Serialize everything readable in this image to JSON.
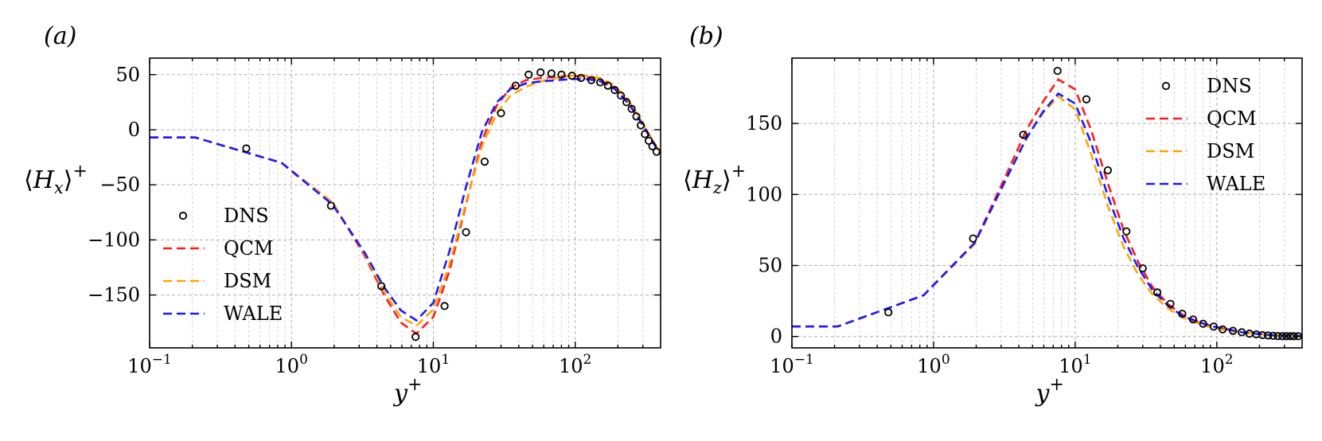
{
  "figure": {
    "colors": {
      "DNS": "#000000",
      "QCM": "#ff1a1a",
      "DSM": "#ffa500",
      "WALE": "#1a1aff"
    }
  },
  "chart_data": [
    {
      "panel_label": "(a)",
      "type": "line",
      "xscale": "log",
      "xlim": [
        0.1,
        400
      ],
      "ylim": [
        -198,
        65
      ],
      "xlabel_base": "y",
      "xlabel_sup": "+",
      "ylabel_main": "⟨H",
      "ylabel_sub": "x",
      "ylabel_close": "⟩",
      "ylabel_sup": "+",
      "x_ticks": [
        {
          "v": 0.1,
          "base": "10",
          "exp": "−1"
        },
        {
          "v": 1,
          "base": "10",
          "exp": "0"
        },
        {
          "v": 10,
          "base": "10",
          "exp": "1"
        },
        {
          "v": 100,
          "base": "10",
          "exp": "2"
        }
      ],
      "y_ticks": [
        {
          "v": 50,
          "label": "50"
        },
        {
          "v": 0,
          "label": "0"
        },
        {
          "v": -50,
          "label": "−50"
        },
        {
          "v": -100,
          "label": "−100"
        },
        {
          "v": -150,
          "label": "−150"
        }
      ],
      "legend": {
        "position": "lower-left",
        "entries": [
          "DNS",
          "QCM",
          "DSM",
          "WALE"
        ]
      },
      "grid": true,
      "series": [
        {
          "name": "DNS",
          "style": "markers",
          "color": "#000000",
          "x": [
            0.48,
            1.9,
            4.3,
            7.5,
            12,
            17,
            23,
            30,
            38,
            47,
            57,
            68,
            80,
            95,
            110,
            130,
            150,
            170,
            190,
            210,
            230,
            250,
            270,
            290,
            310,
            330,
            350,
            375
          ],
          "y": [
            -17,
            -69,
            -142,
            -188,
            -160,
            -93,
            -29,
            15,
            40,
            50,
            52,
            51,
            50,
            49,
            47,
            45,
            43,
            40,
            36,
            31,
            25,
            19,
            12,
            4,
            -4,
            -10,
            -15,
            -20
          ]
        },
        {
          "name": "QCM",
          "style": "dashed",
          "color": "#ff1a1a",
          "x": [
            0.1,
            0.21,
            0.85,
            1.95,
            3.3,
            4.5,
            5.9,
            7.6,
            10,
            13,
            17,
            22,
            28,
            35,
            45,
            58,
            75,
            95,
            120,
            150,
            190,
            240,
            300,
            360,
            400
          ],
          "y": [
            -7,
            -7,
            -30,
            -66,
            -115,
            -150,
            -175,
            -185,
            -170,
            -128,
            -68,
            -10,
            22,
            38,
            45,
            47,
            48,
            49,
            48,
            45,
            38,
            24,
            5,
            -12,
            -22
          ]
        },
        {
          "name": "DSM",
          "style": "dashed",
          "color": "#ffa500",
          "x": [
            0.1,
            0.21,
            0.85,
            1.95,
            3.3,
            4.5,
            5.9,
            7.6,
            10,
            13,
            17,
            22,
            28,
            35,
            45,
            58,
            75,
            95,
            120,
            150,
            190,
            240,
            300,
            360,
            400
          ],
          "y": [
            -7,
            -7,
            -30,
            -66,
            -113,
            -147,
            -170,
            -178,
            -163,
            -122,
            -66,
            -15,
            15,
            31,
            39,
            44,
            47,
            49,
            49,
            47,
            40,
            26,
            6,
            -12,
            -22
          ]
        },
        {
          "name": "WALE",
          "style": "dashed",
          "color": "#1a1aff",
          "x": [
            0.1,
            0.21,
            0.85,
            1.95,
            3.3,
            4.5,
            5.9,
            7.6,
            10,
            13,
            17,
            22,
            28,
            35,
            45,
            58,
            75,
            95,
            120,
            150,
            190,
            240,
            300,
            360,
            400
          ],
          "y": [
            -7,
            -7,
            -30,
            -68,
            -112,
            -143,
            -164,
            -173,
            -157,
            -110,
            -52,
            -2,
            25,
            37,
            42,
            44,
            45,
            46,
            46,
            44,
            37,
            23,
            4,
            -13,
            -22
          ]
        }
      ]
    },
    {
      "panel_label": "(b)",
      "type": "line",
      "xscale": "log",
      "xlim": [
        0.1,
        400
      ],
      "ylim": [
        -8,
        196
      ],
      "xlabel_base": "y",
      "xlabel_sup": "+",
      "ylabel_main": "⟨H",
      "ylabel_sub": "z",
      "ylabel_close": "⟩",
      "ylabel_sup": "+",
      "x_ticks": [
        {
          "v": 0.1,
          "base": "10",
          "exp": "−1"
        },
        {
          "v": 1,
          "base": "10",
          "exp": "0"
        },
        {
          "v": 10,
          "base": "10",
          "exp": "1"
        },
        {
          "v": 100,
          "base": "10",
          "exp": "2"
        }
      ],
      "y_ticks": [
        {
          "v": 150,
          "label": "150"
        },
        {
          "v": 100,
          "label": "100"
        },
        {
          "v": 50,
          "label": "50"
        },
        {
          "v": 0,
          "label": "0"
        }
      ],
      "legend": {
        "position": "upper-right",
        "entries": [
          "DNS",
          "QCM",
          "DSM",
          "WALE"
        ]
      },
      "grid": true,
      "series": [
        {
          "name": "DNS",
          "style": "markers",
          "color": "#000000",
          "x": [
            0.48,
            1.9,
            4.3,
            7.5,
            12,
            17,
            23,
            30,
            38,
            47,
            57,
            68,
            80,
            95,
            110,
            130,
            150,
            170,
            190,
            210,
            230,
            250,
            270,
            290,
            310,
            330,
            350,
            375
          ],
          "y": [
            17,
            69,
            142,
            187,
            167,
            117,
            74,
            48,
            31,
            23,
            16,
            12,
            9,
            7,
            5,
            4,
            3,
            2,
            1.5,
            1,
            0.7,
            0.5,
            0.3,
            0.2,
            0.2,
            0.2,
            0.2,
            0.2
          ]
        },
        {
          "name": "QCM",
          "style": "dashed",
          "color": "#ff1a1a",
          "x": [
            0.1,
            0.21,
            0.85,
            1.95,
            3.3,
            4.5,
            5.9,
            7.6,
            10,
            13,
            17,
            22,
            28,
            35,
            45,
            58,
            75,
            95,
            120,
            150,
            190,
            240,
            300,
            400
          ],
          "y": [
            7,
            7,
            29,
            66,
            115,
            145,
            165,
            181,
            174,
            145,
            108,
            75,
            52,
            35,
            23,
            15,
            10,
            7,
            5,
            3,
            2,
            1,
            0.5,
            0.3
          ]
        },
        {
          "name": "DSM",
          "style": "dashed",
          "color": "#ffa500",
          "x": [
            0.1,
            0.21,
            0.85,
            1.95,
            3.3,
            4.5,
            5.9,
            7.6,
            10,
            13,
            17,
            22,
            28,
            35,
            45,
            58,
            75,
            95,
            120,
            150,
            190,
            240,
            300,
            400
          ],
          "y": [
            7,
            7,
            29,
            65,
            112,
            140,
            157,
            169,
            160,
            128,
            92,
            63,
            43,
            30,
            20,
            13,
            9,
            6,
            4,
            3,
            2,
            1,
            0.5,
            0.3
          ]
        },
        {
          "name": "WALE",
          "style": "dashed",
          "color": "#1a1aff",
          "x": [
            0.1,
            0.21,
            0.85,
            1.95,
            3.3,
            4.5,
            5.9,
            7.6,
            10,
            13,
            17,
            22,
            28,
            35,
            45,
            58,
            75,
            95,
            120,
            150,
            190,
            240,
            300,
            400
          ],
          "y": [
            7,
            7,
            29,
            66,
            112,
            139,
            158,
            171,
            164,
            136,
            99,
            69,
            48,
            33,
            22,
            14,
            10,
            7,
            5,
            3,
            2,
            1,
            0.5,
            0.3
          ]
        }
      ]
    }
  ]
}
